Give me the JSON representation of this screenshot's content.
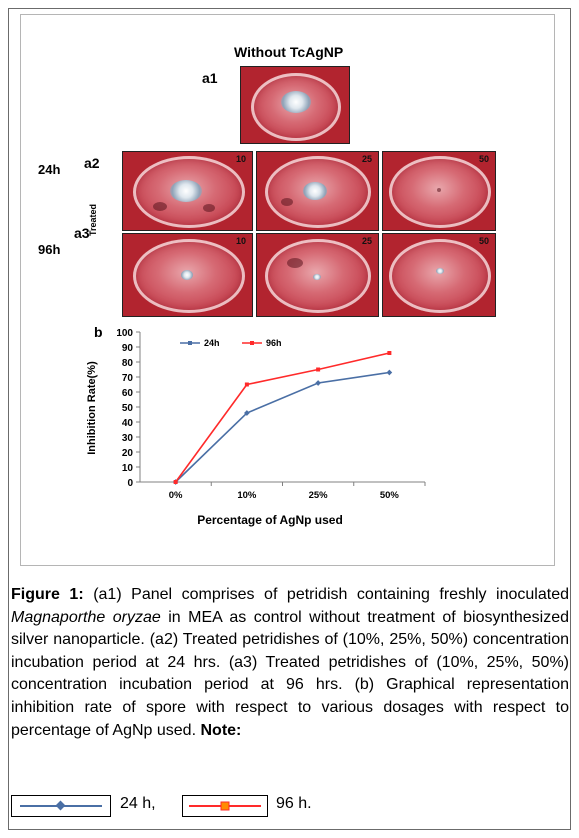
{
  "figure": {
    "top_title": "Without TcAgNP",
    "labels": {
      "a1": "a1",
      "a2": "a2",
      "a3": "a3",
      "b": "b",
      "h24": "24h",
      "h96": "96h",
      "treated": "Treated"
    },
    "concentrations": [
      "10",
      "25",
      "50"
    ]
  },
  "chart_data": {
    "type": "line",
    "categories": [
      "0%",
      "10%",
      "25%",
      "50%"
    ],
    "series": [
      {
        "name": "24h",
        "values": [
          0,
          46,
          66,
          73
        ],
        "color": "#4a6fa5"
      },
      {
        "name": "96h",
        "values": [
          0,
          65,
          75,
          86
        ],
        "color": "#ff2a2a"
      }
    ],
    "xlabel": "Percentage of AgNp used",
    "ylabel": "Inhibition Rate(%)",
    "ylim": [
      0,
      100
    ],
    "yticks": [
      "0",
      "10",
      "20",
      "30",
      "40",
      "50",
      "60",
      "70",
      "80",
      "90",
      "100"
    ],
    "legend_position": "top"
  },
  "caption": {
    "label": "Figure 1:",
    "part1": "(a1) Panel comprises of petridish containing freshly inoculated",
    "species": "Magnaporthe oryzae",
    "part2": "in MEA as control without treatment of biosynthesized silver nanoparticle. (a2) Treated petridishes of (10%, 25%, 50%) concentration incubation period at 24 hrs. (a3) Treated petridishes of (10%, 25%, 50%) concentration incubation period at 96 hrs. (b) Graphical representation inhibition rate of spore with respect to various dosages with respect to percentage of AgNp used.",
    "note_label": "Note:",
    "legend_24": "24 h,",
    "legend_96": "96 h."
  },
  "colors": {
    "series_24": "#4a6fa5",
    "series_96": "#ff2a2a",
    "agar": "#b2242f"
  }
}
